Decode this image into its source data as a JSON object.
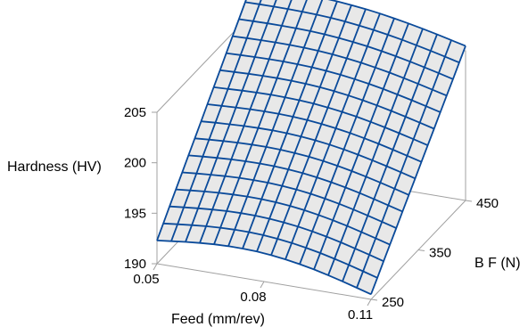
{
  "chart_data": {
    "type": "surface",
    "title": "",
    "xlabel": "Feed (mm/rev)",
    "ylabel": "B F (N)",
    "zlabel": "Hardness (HV)",
    "x_ticks": [
      "0.05",
      "0.08",
      "0.11"
    ],
    "y_ticks": [
      "250",
      "350",
      "450"
    ],
    "z_ticks": [
      "190",
      "195",
      "200",
      "205"
    ],
    "xlim": [
      0.05,
      0.11
    ],
    "ylim": [
      250,
      450
    ],
    "zlim": [
      190,
      205
    ],
    "grid_size": [
      15,
      15
    ],
    "corner_values": {
      "feed_0.05_bf_250": 192.3,
      "feed_0.11_bf_250": 190.5,
      "feed_0.05_bf_450": 207.8,
      "feed_0.11_bf_450": 205.3
    },
    "surface_color": "#e8e8e8",
    "mesh_color": "#0a4a9a"
  }
}
